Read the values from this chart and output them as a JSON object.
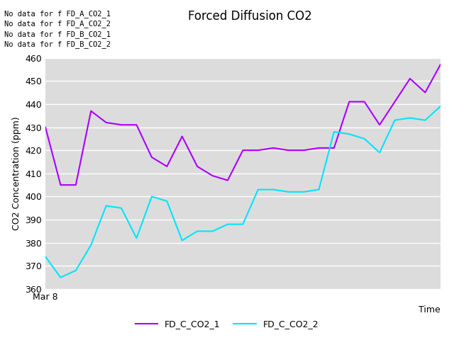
{
  "title": "Forced Diffusion CO2",
  "xlabel": "Time",
  "ylabel": "CO2 Concentration (ppm)",
  "x_tick_label": "Mar 8",
  "ylim": [
    360,
    460
  ],
  "yticks": [
    360,
    370,
    380,
    390,
    400,
    410,
    420,
    430,
    440,
    450,
    460
  ],
  "background_color": "#dcdcdc",
  "grid_color": "#ffffff",
  "annotations": [
    "No data for f FD_A_CO2_1",
    "No data for f FD_A_CO2_2",
    "No data for f FD_B_CO2_1",
    "No data for f FD_B_CO2_2"
  ],
  "series": {
    "FD_C_CO2_1": {
      "color": "#aa00ff",
      "y": [
        430,
        405,
        405,
        437,
        432,
        431,
        431,
        417,
        413,
        426,
        413,
        409,
        407,
        420,
        420,
        421,
        420,
        420,
        421,
        421,
        441,
        441,
        431,
        441,
        451,
        445,
        457
      ]
    },
    "FD_C_CO2_2": {
      "color": "#00e5ff",
      "y": [
        374,
        365,
        368,
        379,
        396,
        395,
        382,
        400,
        398,
        381,
        385,
        385,
        388,
        388,
        403,
        403,
        402,
        402,
        403,
        428,
        427,
        425,
        419,
        433,
        434,
        433,
        439
      ]
    }
  },
  "legend_loc": "lower center",
  "title_fontsize": 12,
  "label_fontsize": 9,
  "tick_fontsize": 9,
  "annotation_fontsize": 7.5
}
